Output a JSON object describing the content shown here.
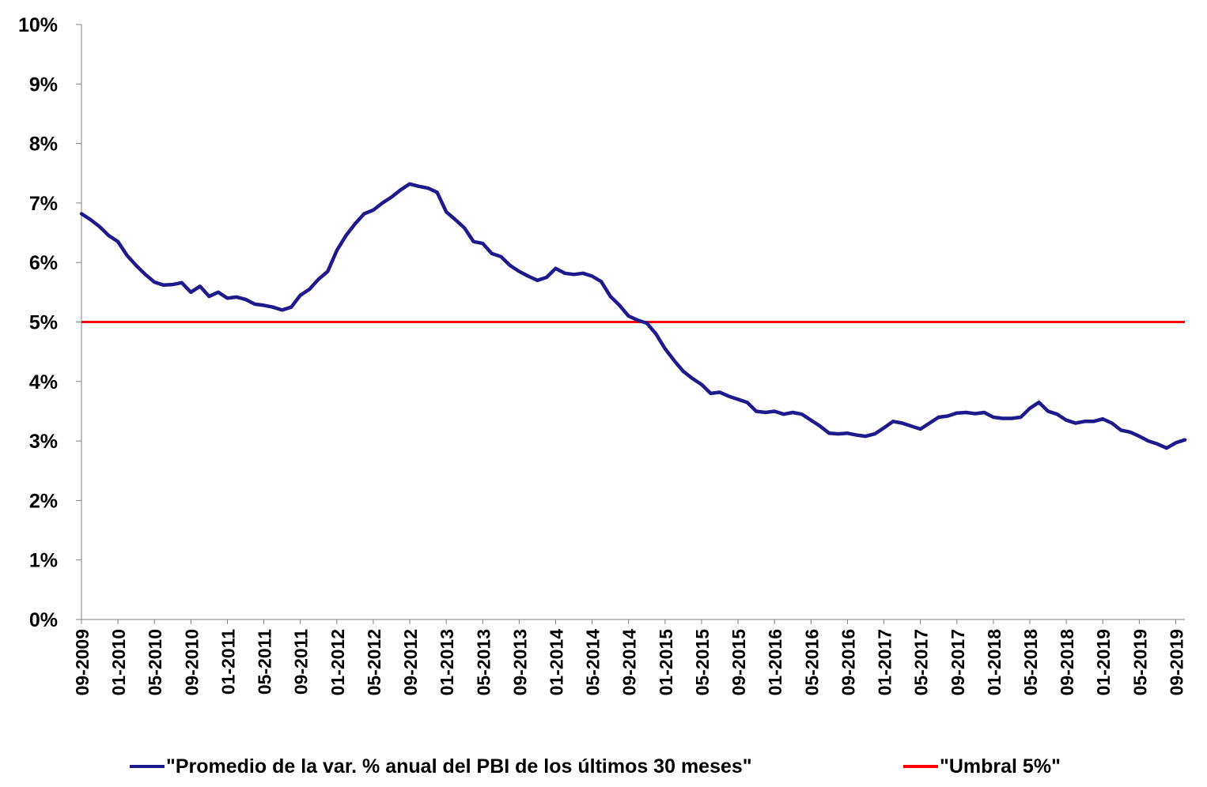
{
  "chart_data": {
    "type": "line",
    "title": "",
    "xlabel": "",
    "ylabel": "",
    "ylim": [
      0,
      10
    ],
    "y_unit": "%",
    "y_ticks": [
      "0%",
      "1%",
      "2%",
      "3%",
      "4%",
      "5%",
      "6%",
      "7%",
      "8%",
      "9%",
      "10%"
    ],
    "x_tick_labels": [
      "09-2009",
      "01-2010",
      "05-2010",
      "09-2010",
      "01-2011",
      "05-2011",
      "09-2011",
      "01-2012",
      "05-2012",
      "09-2012",
      "01-2013",
      "05-2013",
      "09-2013",
      "01-2014",
      "05-2014",
      "09-2014",
      "01-2015",
      "05-2015",
      "09-2015",
      "01-2016",
      "05-2016",
      "09-2016",
      "01-2017",
      "05-2017",
      "09-2017",
      "01-2018",
      "05-2018",
      "09-2018",
      "01-2019",
      "05-2019",
      "09-2019"
    ],
    "grid": false,
    "legend_position": "bottom",
    "series": [
      {
        "name": "\"Promedio de la var. % anual del PBI de los últimos 30 meses\"",
        "color": "#1f1a8c",
        "values": [
          6.82,
          6.72,
          6.6,
          6.45,
          6.35,
          6.12,
          5.95,
          5.8,
          5.67,
          5.62,
          5.63,
          5.66,
          5.5,
          5.6,
          5.43,
          5.5,
          5.4,
          5.42,
          5.38,
          5.3,
          5.28,
          5.25,
          5.2,
          5.25,
          5.45,
          5.55,
          5.72,
          5.85,
          6.2,
          6.45,
          6.65,
          6.82,
          6.88,
          7.0,
          7.1,
          7.22,
          7.32,
          7.28,
          7.25,
          7.18,
          6.85,
          6.72,
          6.58,
          6.35,
          6.32,
          6.15,
          6.1,
          5.95,
          5.85,
          5.77,
          5.7,
          5.75,
          5.9,
          5.82,
          5.8,
          5.82,
          5.77,
          5.68,
          5.43,
          5.28,
          5.1,
          5.03,
          4.98,
          4.8,
          4.55,
          4.35,
          4.17,
          4.05,
          3.95,
          3.8,
          3.82,
          3.75,
          3.7,
          3.65,
          3.5,
          3.48,
          3.5,
          3.45,
          3.48,
          3.45,
          3.35,
          3.25,
          3.13,
          3.12,
          3.13,
          3.1,
          3.08,
          3.12,
          3.22,
          3.33,
          3.3,
          3.25,
          3.2,
          3.3,
          3.4,
          3.42,
          3.47,
          3.48,
          3.46,
          3.48,
          3.4,
          3.38,
          3.38,
          3.4,
          3.55,
          3.65,
          3.5,
          3.45,
          3.35,
          3.3,
          3.33,
          3.33,
          3.37,
          3.3,
          3.18,
          3.15,
          3.08,
          3.0,
          2.95,
          2.88,
          2.97,
          3.02
        ]
      },
      {
        "name": "\"Umbral 5%\"",
        "color": "#ff0000",
        "values": [
          5,
          5
        ]
      }
    ]
  }
}
